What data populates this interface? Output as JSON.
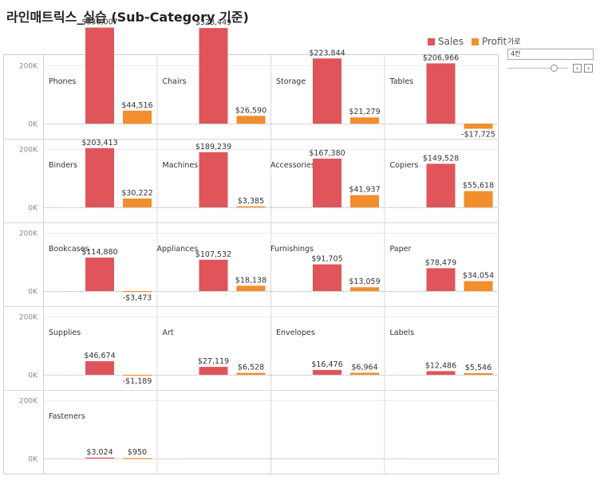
{
  "title": "라인매트릭스_실습 (Sub-Category 기준)",
  "legend": [
    {
      "label": "Sales",
      "color": "#e0555a"
    },
    {
      "label": "Profit",
      "color": "#f28e2b"
    }
  ],
  "control": {
    "label": "가로",
    "value": "4칸",
    "prev_glyph": "‹",
    "next_glyph": "›"
  },
  "chart_data": {
    "type": "bar",
    "layout": "small-multiples",
    "columns": 4,
    "ylim": [
      -25000,
      350000
    ],
    "y_ticks": [
      {
        "value": 0,
        "label": "0K"
      },
      {
        "value": 200000,
        "label": "200K"
      }
    ],
    "series_names": [
      "Sales",
      "Profit"
    ],
    "panels": [
      {
        "name": "Phones",
        "sales": 330007,
        "profit": 44516,
        "sales_label": "$330,007",
        "profit_label": "$44,516"
      },
      {
        "name": "Chairs",
        "sales": 328449,
        "profit": 26590,
        "sales_label": "$328,449",
        "profit_label": "$26,590"
      },
      {
        "name": "Storage",
        "sales": 223844,
        "profit": 21279,
        "sales_label": "$223,844",
        "profit_label": "$21,279"
      },
      {
        "name": "Tables",
        "sales": 206966,
        "profit": -17725,
        "sales_label": "$206,966",
        "profit_label": "-$17,725"
      },
      {
        "name": "Binders",
        "sales": 203413,
        "profit": 30222,
        "sales_label": "$203,413",
        "profit_label": "$30,222"
      },
      {
        "name": "Machines",
        "sales": 189239,
        "profit": 3385,
        "sales_label": "$189,239",
        "profit_label": "$3,385"
      },
      {
        "name": "Accessories",
        "sales": 167380,
        "profit": 41937,
        "sales_label": "$167,380",
        "profit_label": "$41,937"
      },
      {
        "name": "Copiers",
        "sales": 149528,
        "profit": 55618,
        "sales_label": "$149,528",
        "profit_label": "$55,618"
      },
      {
        "name": "Bookcases",
        "sales": 114880,
        "profit": -3473,
        "sales_label": "$114,880",
        "profit_label": "-$3,473"
      },
      {
        "name": "Appliances",
        "sales": 107532,
        "profit": 18138,
        "sales_label": "$107,532",
        "profit_label": "$18,138"
      },
      {
        "name": "Furnishings",
        "sales": 91705,
        "profit": 13059,
        "sales_label": "$91,705",
        "profit_label": "$13,059"
      },
      {
        "name": "Paper",
        "sales": 78479,
        "profit": 34054,
        "sales_label": "$78,479",
        "profit_label": "$34,054"
      },
      {
        "name": "Supplies",
        "sales": 46674,
        "profit": -1189,
        "sales_label": "$46,674",
        "profit_label": "-$1,189"
      },
      {
        "name": "Art",
        "sales": 27119,
        "profit": 6528,
        "sales_label": "$27,119",
        "profit_label": "$6,528"
      },
      {
        "name": "Envelopes",
        "sales": 16476,
        "profit": 6964,
        "sales_label": "$16,476",
        "profit_label": "$6,964"
      },
      {
        "name": "Labels",
        "sales": 12486,
        "profit": 5546,
        "sales_label": "$12,486",
        "profit_label": "$5,546"
      },
      {
        "name": "Fasteners",
        "sales": 3024,
        "profit": 950,
        "sales_label": "$3,024",
        "profit_label": "$950"
      }
    ]
  }
}
